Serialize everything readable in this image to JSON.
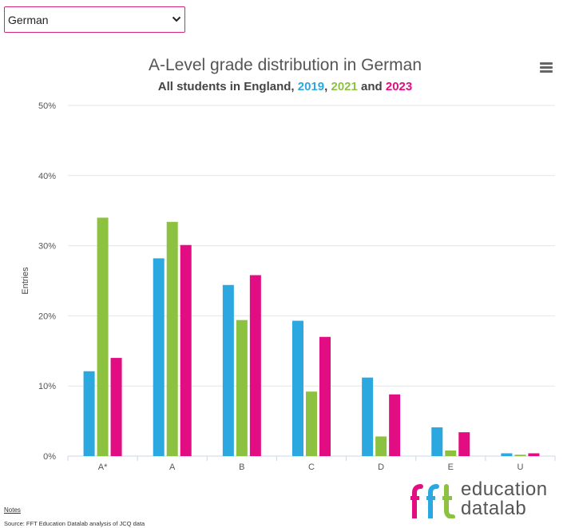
{
  "selector": {
    "value": "German"
  },
  "colors": {
    "y2019": "#2aa8df",
    "y2021": "#8cc23f",
    "y2023": "#e20d82",
    "select_border": "#d4257f"
  },
  "chart_data": {
    "type": "bar",
    "title": "A-Level grade distribution in German",
    "subtitle_parts": [
      {
        "text": "All students in England, ",
        "color": ""
      },
      {
        "text": "2019",
        "color": "#2aa8df"
      },
      {
        "text": ", ",
        "color": ""
      },
      {
        "text": "2021",
        "color": "#8cc23f"
      },
      {
        "text": " and ",
        "color": ""
      },
      {
        "text": "2023",
        "color": "#e20d82"
      }
    ],
    "ylabel": "Entries",
    "xlabel": "",
    "ylim": [
      0,
      50
    ],
    "yticks": [
      "0%",
      "10%",
      "20%",
      "30%",
      "40%",
      "50%"
    ],
    "ytick_values": [
      0,
      10,
      20,
      30,
      40,
      50
    ],
    "categories": [
      "A*",
      "A",
      "B",
      "C",
      "D",
      "E",
      "U"
    ],
    "series": [
      {
        "name": "2019",
        "color": "#2aa8df",
        "values": [
          12.1,
          28.2,
          24.4,
          19.3,
          11.2,
          4.1,
          0.4
        ]
      },
      {
        "name": "2021",
        "color": "#8cc23f",
        "values": [
          34.0,
          33.4,
          19.4,
          9.2,
          2.8,
          0.8,
          0.2
        ]
      },
      {
        "name": "2023",
        "color": "#e20d82",
        "values": [
          14.0,
          30.1,
          25.8,
          17.0,
          8.8,
          3.4,
          0.4
        ]
      }
    ],
    "grid": true
  },
  "footer": {
    "notes_label": "Notes",
    "source": "Source: FFT Education Datalab analysis of JCQ data"
  },
  "logo": {
    "line1": "education",
    "line2_a": "data",
    "line2_b": "lab"
  },
  "icons": {
    "menu": "hamburger-menu-icon",
    "dropdown": "chevron-down-icon"
  }
}
